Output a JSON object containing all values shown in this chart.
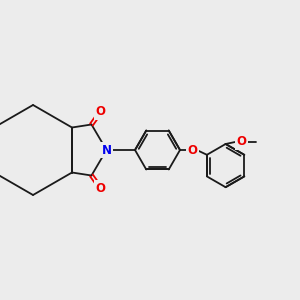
{
  "background_color": "#ececec",
  "bond_color": "#1a1a1a",
  "N_color": "#0000ee",
  "O_color": "#ee0000",
  "lw": 1.3,
  "figsize": [
    3.0,
    3.0
  ],
  "dpi": 100,
  "xlim": [
    0,
    10
  ],
  "ylim": [
    0,
    10
  ]
}
